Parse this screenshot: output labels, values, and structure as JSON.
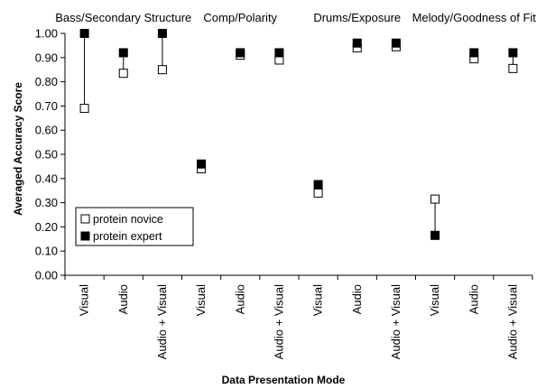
{
  "chart_data": {
    "type": "scatter",
    "title": "",
    "xlabel": "Data Presentation Mode",
    "ylabel": "Averaged Accuracy Score",
    "ylim": [
      0,
      1
    ],
    "yticks": [
      "0.00",
      "0.10",
      "0.20",
      "0.30",
      "0.40",
      "0.50",
      "0.60",
      "0.70",
      "0.80",
      "0.90",
      "1.00"
    ],
    "grid": false,
    "legend_position": "bottom-left",
    "groups": [
      "Bass/Secondary Structure",
      "Comp/Polarity",
      "Drums/Exposure",
      "Melody/Goodness of Fit"
    ],
    "categories": [
      "Visual",
      "Audio",
      "Audio + Visual",
      "Visual",
      "Audio",
      "Audio + Visual",
      "Visual",
      "Audio",
      "Audio + Visual",
      "Visual",
      "Audio",
      "Audio + Visual"
    ],
    "series": [
      {
        "name": "protein novice",
        "marker": "open-square",
        "values": [
          0.69,
          0.835,
          0.85,
          0.44,
          0.91,
          0.89,
          0.34,
          0.94,
          0.945,
          0.315,
          0.895,
          0.855
        ]
      },
      {
        "name": "protein expert",
        "marker": "filled-square",
        "values": [
          1.0,
          0.92,
          1.0,
          0.46,
          0.92,
          0.92,
          0.375,
          0.96,
          0.96,
          0.165,
          0.92,
          0.92
        ]
      }
    ],
    "colors": {
      "axis": "#000000",
      "novice_fill": "#ffffff",
      "expert_fill": "#000000"
    }
  }
}
